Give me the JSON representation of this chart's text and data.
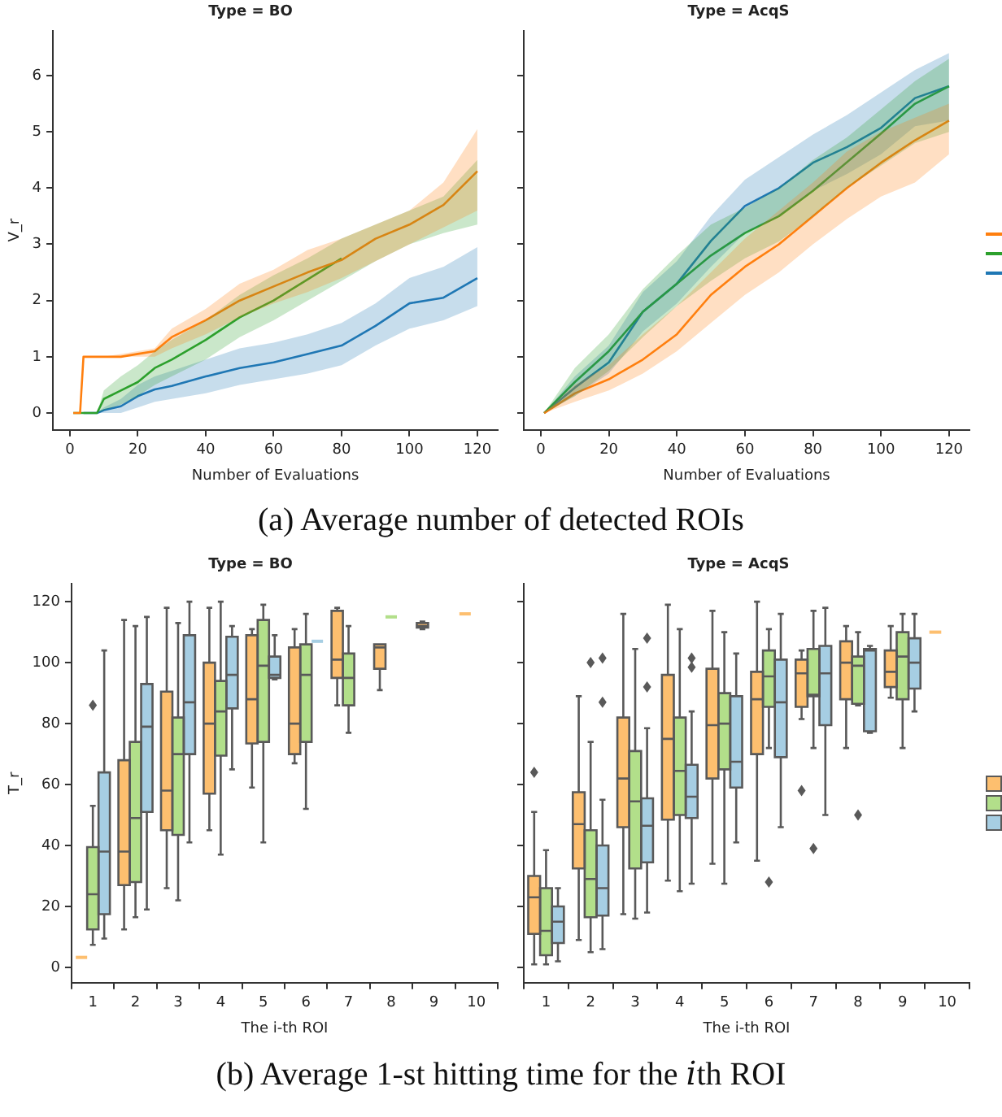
{
  "chart_data": [
    {
      "type": "line",
      "title": "Type = BO",
      "xlabel": "Number of Evaluations",
      "ylabel": "V_r",
      "xlim": [
        -5,
        126
      ],
      "ylim": [
        -0.3,
        6.8
      ],
      "xticks": [
        0,
        20,
        40,
        60,
        80,
        100,
        120
      ],
      "yticks": [
        0,
        1,
        2,
        3,
        4,
        5,
        6
      ],
      "annotations": [
        "(a) Average number of detected ROIs"
      ],
      "x": [
        1,
        3,
        4,
        8,
        10,
        15,
        20,
        25,
        30,
        40,
        50,
        60,
        70,
        80,
        90,
        100,
        110,
        120
      ],
      "series": [
        {
          "color": "#ff7f0e",
          "values": [
            0,
            0,
            1,
            1,
            1,
            1,
            1.05,
            1.1,
            1.35,
            1.65,
            2.0,
            2.25,
            2.5,
            2.72,
            3.1,
            3.35,
            3.7,
            4.3
          ],
          "lower": [
            0,
            0,
            1,
            1,
            1,
            1,
            1.0,
            1.0,
            1.15,
            1.4,
            1.7,
            1.95,
            2.15,
            2.4,
            2.7,
            3.0,
            3.3,
            3.6
          ],
          "upper": [
            0,
            0,
            1,
            1,
            1,
            1.05,
            1.1,
            1.15,
            1.5,
            1.85,
            2.3,
            2.55,
            2.9,
            3.1,
            3.35,
            3.6,
            4.1,
            5.05
          ]
        },
        {
          "color": "#2ca02c",
          "values": [
            0,
            0,
            0,
            0,
            0.25,
            0.4,
            0.55,
            0.8,
            0.95,
            1.3,
            1.7,
            2.0,
            null,
            2.75,
            null,
            null,
            null,
            null
          ],
          "lower": [
            0,
            0,
            0,
            0,
            0.05,
            0.15,
            0.3,
            0.5,
            0.65,
            0.95,
            1.35,
            1.65,
            2.0,
            2.35,
            2.7,
            3.0,
            3.2,
            3.35
          ],
          "upper": [
            0,
            0,
            0,
            0,
            0.4,
            0.65,
            0.85,
            1.1,
            1.3,
            1.65,
            2.1,
            2.45,
            2.75,
            3.1,
            3.35,
            3.6,
            3.85,
            4.5
          ]
        },
        {
          "color": "#1f77b4",
          "values": [
            null,
            null,
            0,
            0,
            0.05,
            0.12,
            0.3,
            0.42,
            0.48,
            0.65,
            0.8,
            0.9,
            1.05,
            1.2,
            1.55,
            1.95,
            2.05,
            2.4
          ],
          "lower": [
            0,
            0,
            0,
            0,
            0,
            0,
            0.1,
            0.2,
            0.25,
            0.35,
            0.5,
            0.6,
            0.7,
            0.85,
            1.2,
            1.5,
            1.65,
            1.9
          ],
          "upper": [
            0,
            0,
            0,
            0,
            0.1,
            0.25,
            0.5,
            0.65,
            0.75,
            0.95,
            1.15,
            1.25,
            1.4,
            1.6,
            1.95,
            2.4,
            2.6,
            2.95
          ]
        }
      ]
    },
    {
      "type": "line",
      "title": "Type = AcqS",
      "xlabel": "Number of Evaluations",
      "xlim": [
        -5,
        126
      ],
      "ylim": [
        -0.3,
        6.8
      ],
      "xticks": [
        0,
        20,
        40,
        60,
        80,
        100,
        120
      ],
      "yticks": [
        0,
        1,
        2,
        3,
        4,
        5,
        6
      ],
      "tick_labels": "x",
      "x": [
        1,
        10,
        20,
        30,
        40,
        50,
        60,
        70,
        80,
        90,
        100,
        110,
        120
      ],
      "series": [
        {
          "color": "#ff7f0e",
          "values": [
            0,
            0.35,
            0.6,
            0.95,
            1.4,
            2.1,
            2.6,
            3.0,
            3.5,
            4.0,
            4.45,
            4.85,
            5.2
          ],
          "lower": [
            0,
            0.2,
            0.4,
            0.7,
            1.1,
            1.6,
            2.1,
            2.5,
            3.0,
            3.45,
            3.85,
            4.1,
            4.6
          ],
          "upper": [
            0,
            0.5,
            0.85,
            1.4,
            1.9,
            2.5,
            3.1,
            3.6,
            4.1,
            4.65,
            5.0,
            5.25,
            5.5
          ]
        },
        {
          "color": "#2ca02c",
          "values": [
            0,
            0.55,
            1.1,
            1.8,
            2.3,
            2.8,
            3.2,
            3.5,
            3.95,
            null,
            4.97,
            5.5,
            5.81
          ],
          "lower": [
            0,
            0.3,
            0.75,
            1.35,
            1.9,
            2.35,
            2.75,
            3.05,
            3.5,
            4.0,
            4.4,
            4.8,
            5.0
          ],
          "upper": [
            0,
            0.8,
            1.4,
            2.2,
            2.8,
            3.35,
            3.65,
            4.0,
            4.5,
            4.9,
            5.4,
            5.9,
            6.3
          ]
        },
        {
          "color": "#1f77b4",
          "values": [
            0,
            0.45,
            0.9,
            1.8,
            2.3,
            3.06,
            3.68,
            4.0,
            4.45,
            4.73,
            5.07,
            5.6,
            5.81
          ],
          "lower": [
            0,
            0.3,
            0.7,
            1.45,
            1.95,
            2.6,
            3.2,
            3.5,
            3.95,
            4.25,
            4.6,
            5.1,
            5.2
          ],
          "upper": [
            0,
            0.65,
            1.2,
            2.15,
            2.7,
            3.5,
            4.15,
            4.55,
            4.95,
            5.3,
            5.7,
            6.1,
            6.4
          ]
        }
      ]
    },
    {
      "type": "box",
      "title": "Type = BO",
      "xlabel": "The i-th ROI",
      "ylabel": "T_r",
      "ylim": [
        -5,
        126
      ],
      "yticks": [
        0,
        20,
        40,
        60,
        80,
        100,
        120
      ],
      "annotations": [
        "(b) Average 1-st hitting time for the 𝑖th ROI"
      ],
      "categories": [
        "1",
        "2",
        "3",
        "4",
        "5",
        "6",
        "7",
        "8",
        "9",
        "10"
      ],
      "series": [
        {
          "color": "#fdbf6f",
          "boxes": [
            {
              "low": 3.3,
              "q1": 3.3,
              "median": 3.3,
              "q3": 3.3,
              "high": 3.3
            },
            {
              "low": 12.5,
              "q1": 27,
              "median": 38,
              "q3": 68,
              "high": 114
            },
            {
              "low": 26,
              "q1": 45,
              "median": 58,
              "q3": 90.5,
              "high": 118
            },
            {
              "low": 45,
              "q1": 57,
              "median": 80,
              "q3": 100,
              "high": 118
            },
            {
              "low": 59,
              "q1": 73.5,
              "median": 88,
              "q3": 109,
              "high": 111
            },
            {
              "low": 67,
              "q1": 70,
              "median": 80,
              "q3": 105,
              "high": 111
            },
            {
              "low": 86,
              "q1": 95,
              "median": 101,
              "q3": 117,
              "high": 118
            },
            {
              "low": 91,
              "q1": 98,
              "median": 105,
              "q3": 106,
              "high": 106
            },
            {
              "low": 111,
              "q1": 111.5,
              "median": 112,
              "q3": 113,
              "high": 113.5
            },
            {
              "low": 116,
              "q1": 116,
              "median": 116,
              "q3": 116,
              "high": 116
            }
          ]
        },
        {
          "color": "#b2df8a",
          "boxes": [
            {
              "low": 7.4,
              "q1": 12.5,
              "median": 24,
              "q3": 39.5,
              "high": 53,
              "outliers": [
                86
              ]
            },
            {
              "low": 16.5,
              "q1": 28,
              "median": 49,
              "q3": 74,
              "high": 112
            },
            {
              "low": 22,
              "q1": 43.5,
              "median": 70,
              "q3": 82,
              "high": 113
            },
            {
              "low": 37,
              "q1": 69.5,
              "median": 84,
              "q3": 94,
              "high": 120
            },
            {
              "low": 41,
              "q1": 74,
              "median": 99,
              "q3": 114,
              "high": 119
            },
            {
              "low": 52,
              "q1": 74,
              "median": 96,
              "q3": 106,
              "high": 116
            },
            {
              "low": 77,
              "q1": 86,
              "median": 95,
              "q3": 103,
              "high": 112
            },
            {
              "low": 115,
              "q1": 115,
              "median": 115,
              "q3": 115,
              "high": 115
            },
            null,
            null
          ]
        },
        {
          "color": "#a6cee3",
          "boxes": [
            {
              "low": 9.5,
              "q1": 17.5,
              "median": 38,
              "q3": 64,
              "high": 104
            },
            {
              "low": 19,
              "q1": 51,
              "median": 79,
              "q3": 93,
              "high": 115
            },
            {
              "low": 41,
              "q1": 70,
              "median": 87,
              "q3": 109,
              "high": 120
            },
            {
              "low": 65,
              "q1": 85,
              "median": 96,
              "q3": 108.5,
              "high": 112
            },
            {
              "low": 94.5,
              "q1": 95,
              "median": 96,
              "q3": 102,
              "high": 109
            },
            {
              "low": 107,
              "q1": 107,
              "median": 107,
              "q3": 107,
              "high": 107
            },
            null,
            null,
            null,
            null
          ]
        }
      ]
    },
    {
      "type": "box",
      "title": "Type = AcqS",
      "xlabel": "The i-th ROI",
      "ylim": [
        -5,
        126
      ],
      "yticks": [
        0,
        20,
        40,
        60,
        80,
        100,
        120
      ],
      "tick_labels": "x",
      "categories": [
        "1",
        "2",
        "3",
        "4",
        "5",
        "6",
        "7",
        "8",
        "9",
        "10"
      ],
      "series": [
        {
          "color": "#fdbf6f",
          "boxes": [
            {
              "low": 1,
              "q1": 11,
              "median": 23,
              "q3": 30,
              "high": 51,
              "outliers": [
                64
              ]
            },
            {
              "low": 9,
              "q1": 32.5,
              "median": 47,
              "q3": 57.5,
              "high": 89
            },
            {
              "low": 17.5,
              "q1": 46,
              "median": 62,
              "q3": 82,
              "high": 116
            },
            {
              "low": 28.5,
              "q1": 48.5,
              "median": 75,
              "q3": 96,
              "high": 119
            },
            {
              "low": 34,
              "q1": 62,
              "median": 79.5,
              "q3": 98,
              "high": 117
            },
            {
              "low": 35,
              "q1": 70,
              "median": 88,
              "q3": 97,
              "high": 120
            },
            {
              "low": 81.5,
              "q1": 85.5,
              "median": 96.5,
              "q3": 101,
              "high": 104,
              "outliers": [
                58
              ]
            },
            {
              "low": 72,
              "q1": 88,
              "median": 100,
              "q3": 107,
              "high": 112
            },
            {
              "low": 88.5,
              "q1": 92,
              "median": 97,
              "q3": 104,
              "high": 112
            },
            {
              "low": 110,
              "q1": 110,
              "median": 110,
              "q3": 110,
              "high": 110
            }
          ]
        },
        {
          "color": "#b2df8a",
          "boxes": [
            {
              "low": 1,
              "q1": 4,
              "median": 12,
              "q3": 26,
              "high": 38.5
            },
            {
              "low": 5,
              "q1": 16.5,
              "median": 29,
              "q3": 45,
              "high": 74,
              "outliers": [
                100
              ]
            },
            {
              "low": 16,
              "q1": 32.5,
              "median": 54.5,
              "q3": 71,
              "high": 104.5
            },
            {
              "low": 25,
              "q1": 50,
              "median": 64.5,
              "q3": 82,
              "high": 111
            },
            {
              "low": 27.5,
              "q1": 65,
              "median": 80,
              "q3": 90,
              "high": 110
            },
            {
              "low": 72,
              "q1": 85.5,
              "median": 95.5,
              "q3": 104,
              "high": 111,
              "outliers": [
                28
              ]
            },
            {
              "low": 72,
              "q1": 89,
              "median": 89.5,
              "q3": 104.5,
              "high": 117,
              "outliers": [
                39
              ]
            },
            {
              "low": 86,
              "q1": 86.5,
              "median": 99,
              "q3": 102,
              "high": 110,
              "outliers": [
                50
              ]
            },
            {
              "low": 72,
              "q1": 88,
              "median": 102,
              "q3": 110,
              "high": 116
            },
            null
          ]
        },
        {
          "color": "#a6cee3",
          "boxes": [
            {
              "low": 2,
              "q1": 8,
              "median": 15,
              "q3": 20,
              "high": 26
            },
            {
              "low": 6,
              "q1": 17,
              "median": 26,
              "q3": 40,
              "high": 55,
              "outliers": [
                101.5,
                87
              ]
            },
            {
              "low": 18,
              "q1": 34.5,
              "median": 46.5,
              "q3": 55.5,
              "high": 78.5,
              "outliers": [
                108,
                92
              ]
            },
            {
              "low": 27.5,
              "q1": 49,
              "median": 56,
              "q3": 66.5,
              "high": 84,
              "outliers": [
                101.5,
                98.5
              ]
            },
            {
              "low": 41,
              "q1": 59,
              "median": 67.5,
              "q3": 89,
              "high": 103
            },
            {
              "low": 46,
              "q1": 69,
              "median": 87,
              "q3": 101,
              "high": 116
            },
            {
              "low": 50,
              "q1": 79.5,
              "median": 96.5,
              "q3": 105.5,
              "high": 118
            },
            {
              "low": 77,
              "q1": 77.5,
              "median": 104,
              "q3": 104.5,
              "high": 105.5
            },
            {
              "low": 84,
              "q1": 91.5,
              "median": 100,
              "q3": 108,
              "high": 116
            },
            null
          ]
        }
      ]
    }
  ]
}
